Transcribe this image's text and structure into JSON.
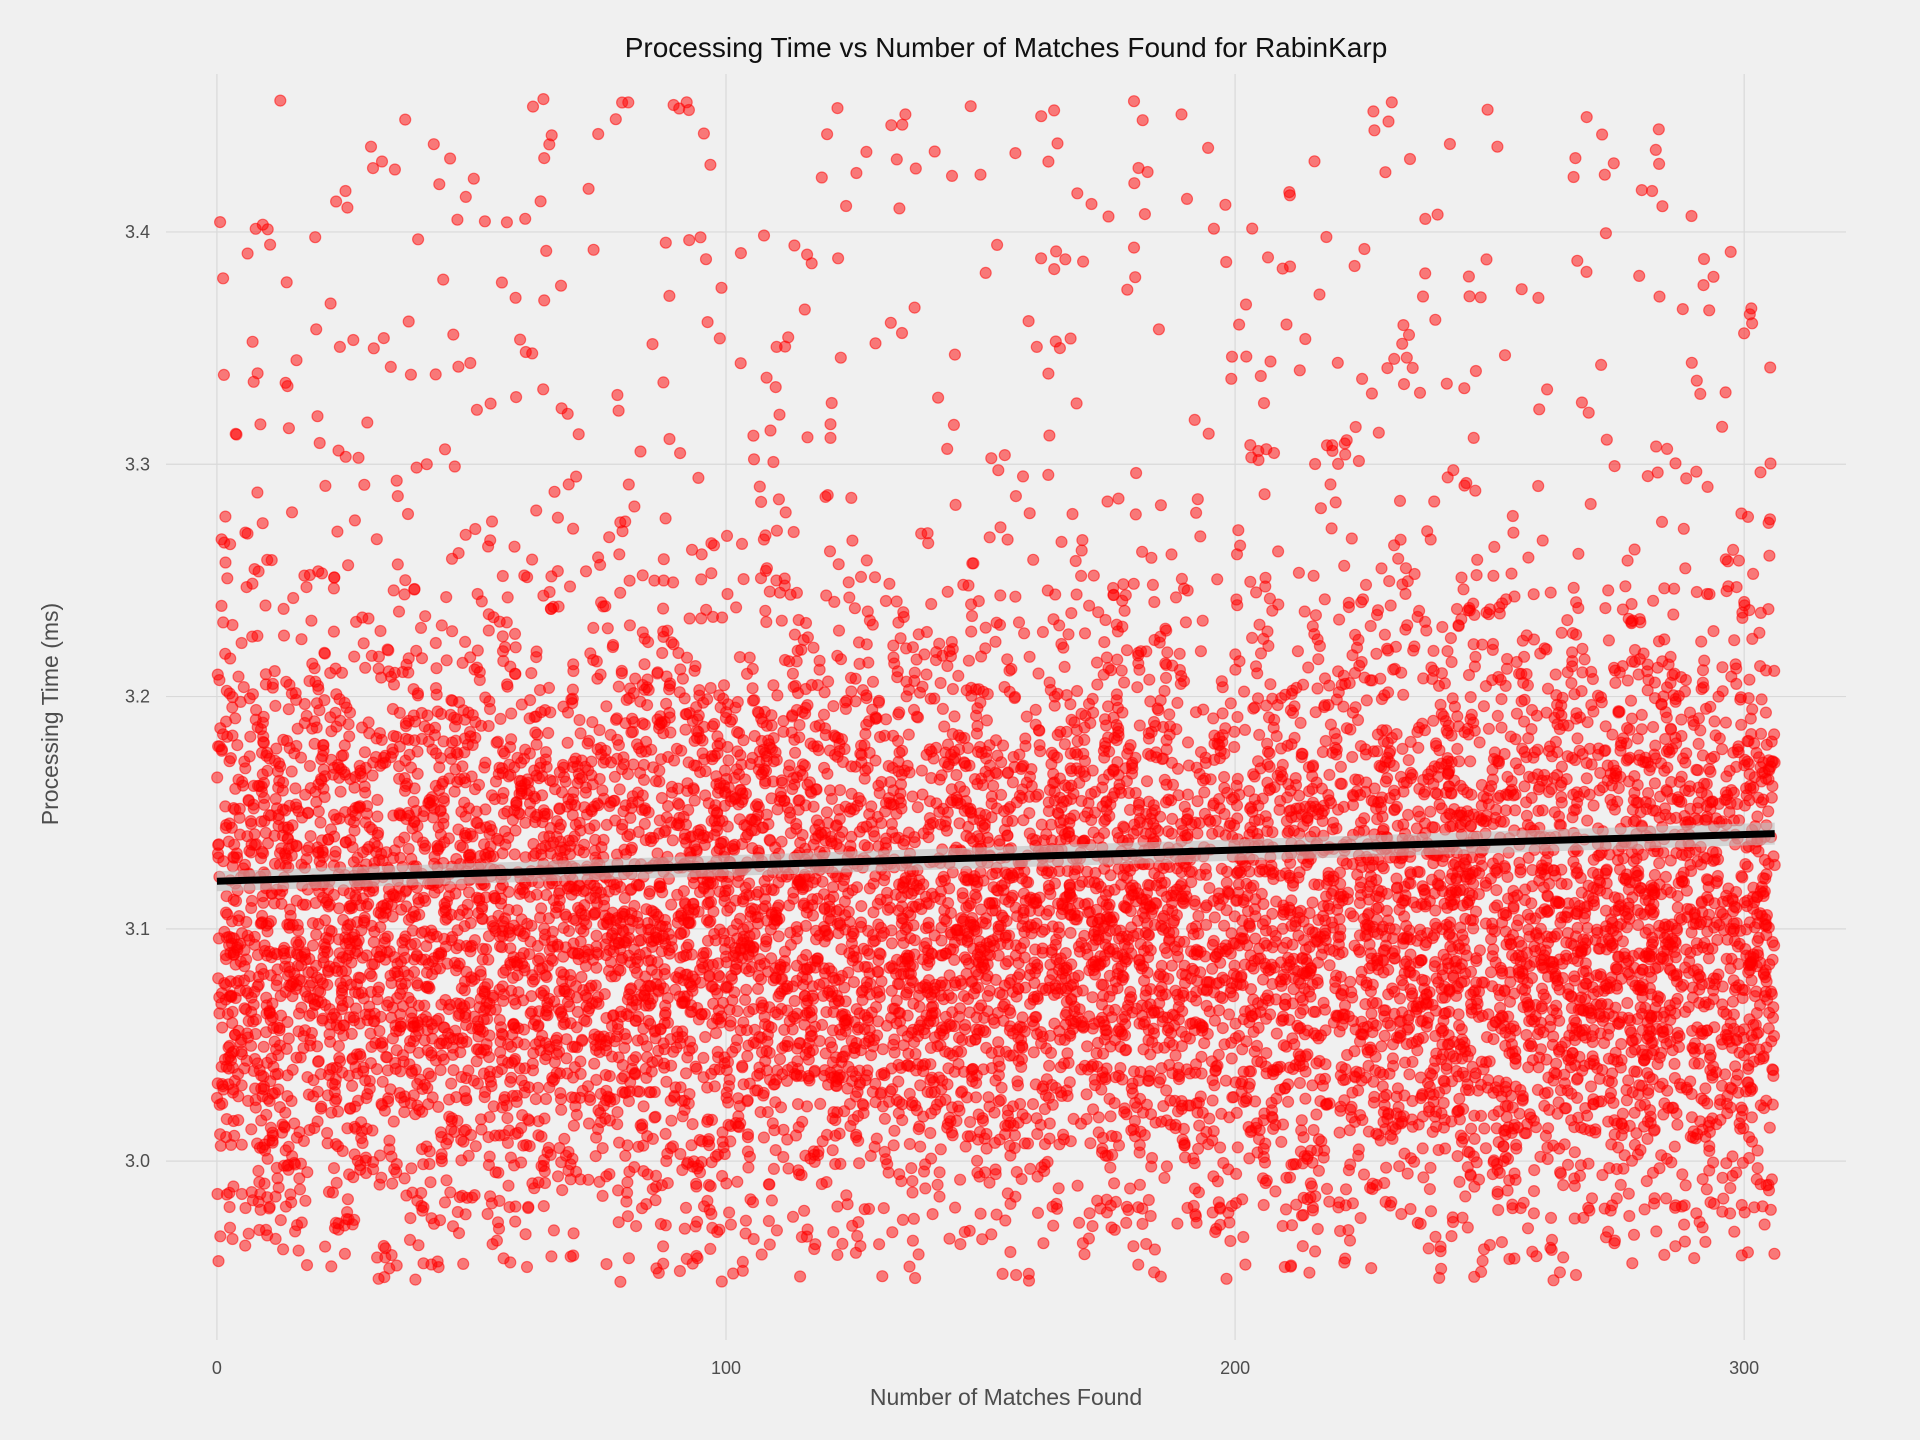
{
  "chart_data": {
    "type": "scatter",
    "title": "Processing Time vs Number of Matches Found for RabinKarp",
    "xlabel": "Number of Matches Found",
    "ylabel": "Processing Time (ms)",
    "xlim": [
      -10,
      320
    ],
    "ylim": [
      2.923,
      3.468
    ],
    "x_ticks": [
      0,
      100,
      200,
      300
    ],
    "y_ticks": [
      3.0,
      3.1,
      3.2,
      3.3,
      3.4
    ],
    "x_tick_labels": [
      "0",
      "100",
      "200",
      "300"
    ],
    "y_tick_labels": [
      "3.0",
      "3.1",
      "3.2",
      "3.3",
      "3.4"
    ],
    "grid": true,
    "legend": "none",
    "point_color": "#ff0000",
    "point_opacity": 0.5,
    "trend_color": "#000000",
    "band_color": "#bfbfbf",
    "x_range": [
      0,
      306
    ],
    "y_range": [
      2.948,
      3.458
    ],
    "y_center": 3.1,
    "y_spread": 0.07,
    "n_points_approx": 10000,
    "trend_line": {
      "type": "linear",
      "x": [
        0,
        306
      ],
      "y": [
        3.1205,
        3.141
      ]
    }
  }
}
